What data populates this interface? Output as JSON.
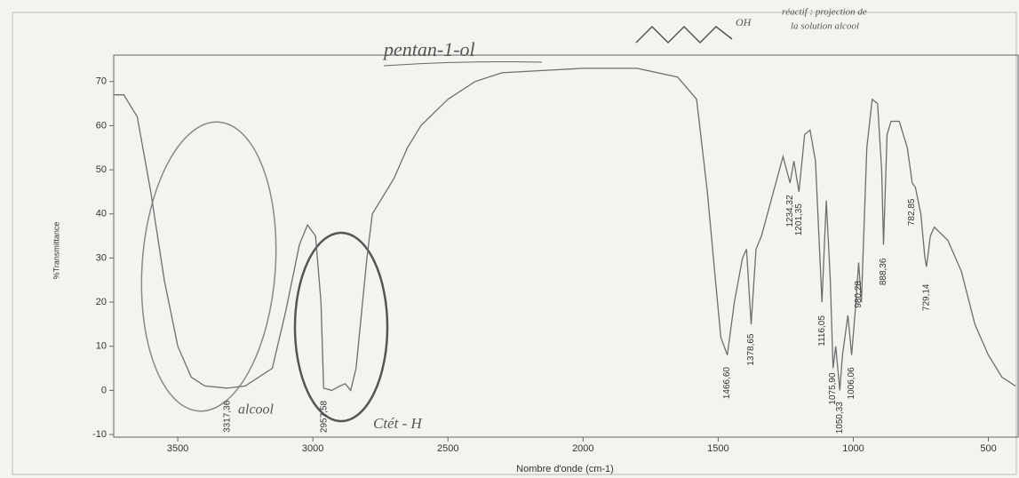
{
  "chart_data": {
    "type": "line",
    "xlabel": "Nombre d'onde (cm-1)",
    "ylabel": "%Transmittance",
    "xlim": [
      3737,
      390
    ],
    "ylim": [
      -10.6,
      76
    ],
    "xticks": [
      3500,
      3000,
      2500,
      2000,
      1500,
      1000,
      500
    ],
    "yticks": [
      -10,
      0,
      10,
      20,
      30,
      40,
      50,
      60,
      70
    ],
    "color": "#6e6e6e",
    "x": [
      3737,
      3700,
      3650,
      3600,
      3550,
      3500,
      3450,
      3400,
      3317,
      3250,
      3150,
      3100,
      3050,
      3020,
      2990,
      2970,
      2960,
      2930,
      2900,
      2880,
      2860,
      2840,
      2800,
      2780,
      2700,
      2650,
      2600,
      2500,
      2400,
      2300,
      2000,
      1800,
      1650,
      1580,
      1540,
      1510,
      1490,
      1466,
      1440,
      1410,
      1395,
      1378,
      1360,
      1340,
      1300,
      1260,
      1234,
      1220,
      1201,
      1180,
      1160,
      1140,
      1116,
      1100,
      1085,
      1075,
      1065,
      1050,
      1040,
      1020,
      1006,
      990,
      980,
      970,
      950,
      930,
      910,
      895,
      888,
      875,
      860,
      830,
      800,
      782,
      770,
      750,
      735,
      729,
      715,
      700,
      650,
      600,
      550,
      500,
      450,
      400
    ],
    "values": [
      67,
      67,
      62,
      45,
      25,
      10,
      3,
      1,
      0.5,
      1,
      5,
      18,
      33,
      37.5,
      35,
      20,
      0.5,
      0,
      1,
      1.5,
      0,
      5,
      30,
      40,
      48,
      55,
      60,
      66,
      70,
      72,
      73,
      73,
      71,
      66,
      45,
      25,
      12,
      8,
      20,
      30,
      32,
      15,
      32,
      35,
      44,
      53,
      47,
      52,
      45,
      58,
      59,
      52,
      20,
      43,
      25,
      5,
      10,
      0,
      8,
      17,
      8,
      20,
      29,
      20,
      55,
      66,
      65,
      50,
      33,
      58,
      61,
      61,
      55,
      47,
      46,
      40,
      30,
      28,
      35,
      37,
      34,
      27,
      15,
      8,
      3,
      1
    ],
    "annotations": [
      {
        "value": 3317.36,
        "label": "3317,36"
      },
      {
        "value": 2957.58,
        "label": "2957,58"
      },
      {
        "value": 1466.6,
        "label": "1466,60"
      },
      {
        "value": 1378.65,
        "label": "1378,65"
      },
      {
        "value": 1234.32,
        "label": "1234,32"
      },
      {
        "value": 1201.35,
        "label": "1201,35"
      },
      {
        "value": 1116.05,
        "label": "1116,05"
      },
      {
        "value": 1075.9,
        "label": "1075,90"
      },
      {
        "value": 1050.33,
        "label": "1050,33"
      },
      {
        "value": 1006.06,
        "label": "1006,06"
      },
      {
        "value": 980.28,
        "label": "980,28"
      },
      {
        "value": 888.36,
        "label": "888,36"
      },
      {
        "value": 782.85,
        "label": "782,85"
      },
      {
        "value": 729.14,
        "label": "729,14"
      }
    ],
    "notes": [
      "pentan-1-ol",
      "OH",
      "réactif : projection de",
      "la solution alcool",
      "alcool",
      "Ctét - H"
    ]
  }
}
